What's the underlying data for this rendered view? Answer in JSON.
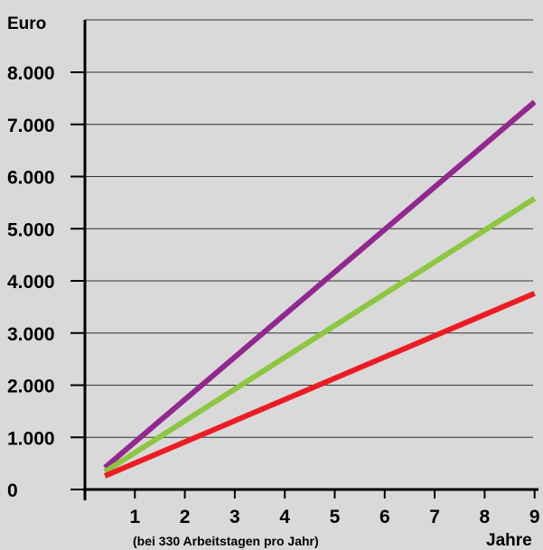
{
  "chart_data": {
    "type": "line",
    "ylabel": "Euro",
    "xlabel": "Jahre",
    "x_note": "(bei 330 Arbeitstagen pro Jahr)",
    "xlim": [
      0,
      9
    ],
    "ylim": [
      0,
      8000
    ],
    "x_ticks": [
      1,
      2,
      3,
      4,
      5,
      6,
      7,
      8,
      9
    ],
    "x_tick_labels": [
      "1",
      "2",
      "3",
      "4",
      "5",
      "6",
      "7",
      "8",
      "9"
    ],
    "y_ticks": [
      0,
      1000,
      2000,
      3000,
      4000,
      5000,
      6000,
      7000,
      8000
    ],
    "y_tick_labels": [
      "0",
      "1.000",
      "2.000",
      "3.000",
      "4.000",
      "5.000",
      "6.000",
      "7.000",
      "8.000"
    ],
    "grid": "horizontal",
    "series": [
      {
        "color": "#92278f",
        "x": [
          0.4,
          9
        ],
        "y": [
          420,
          7430
        ]
      },
      {
        "color": "#8dc63f",
        "x": [
          0.4,
          9
        ],
        "y": [
          340,
          5580
        ]
      },
      {
        "color": "#ed1c24",
        "x": [
          0.4,
          9
        ],
        "y": [
          260,
          3760
        ]
      }
    ]
  }
}
